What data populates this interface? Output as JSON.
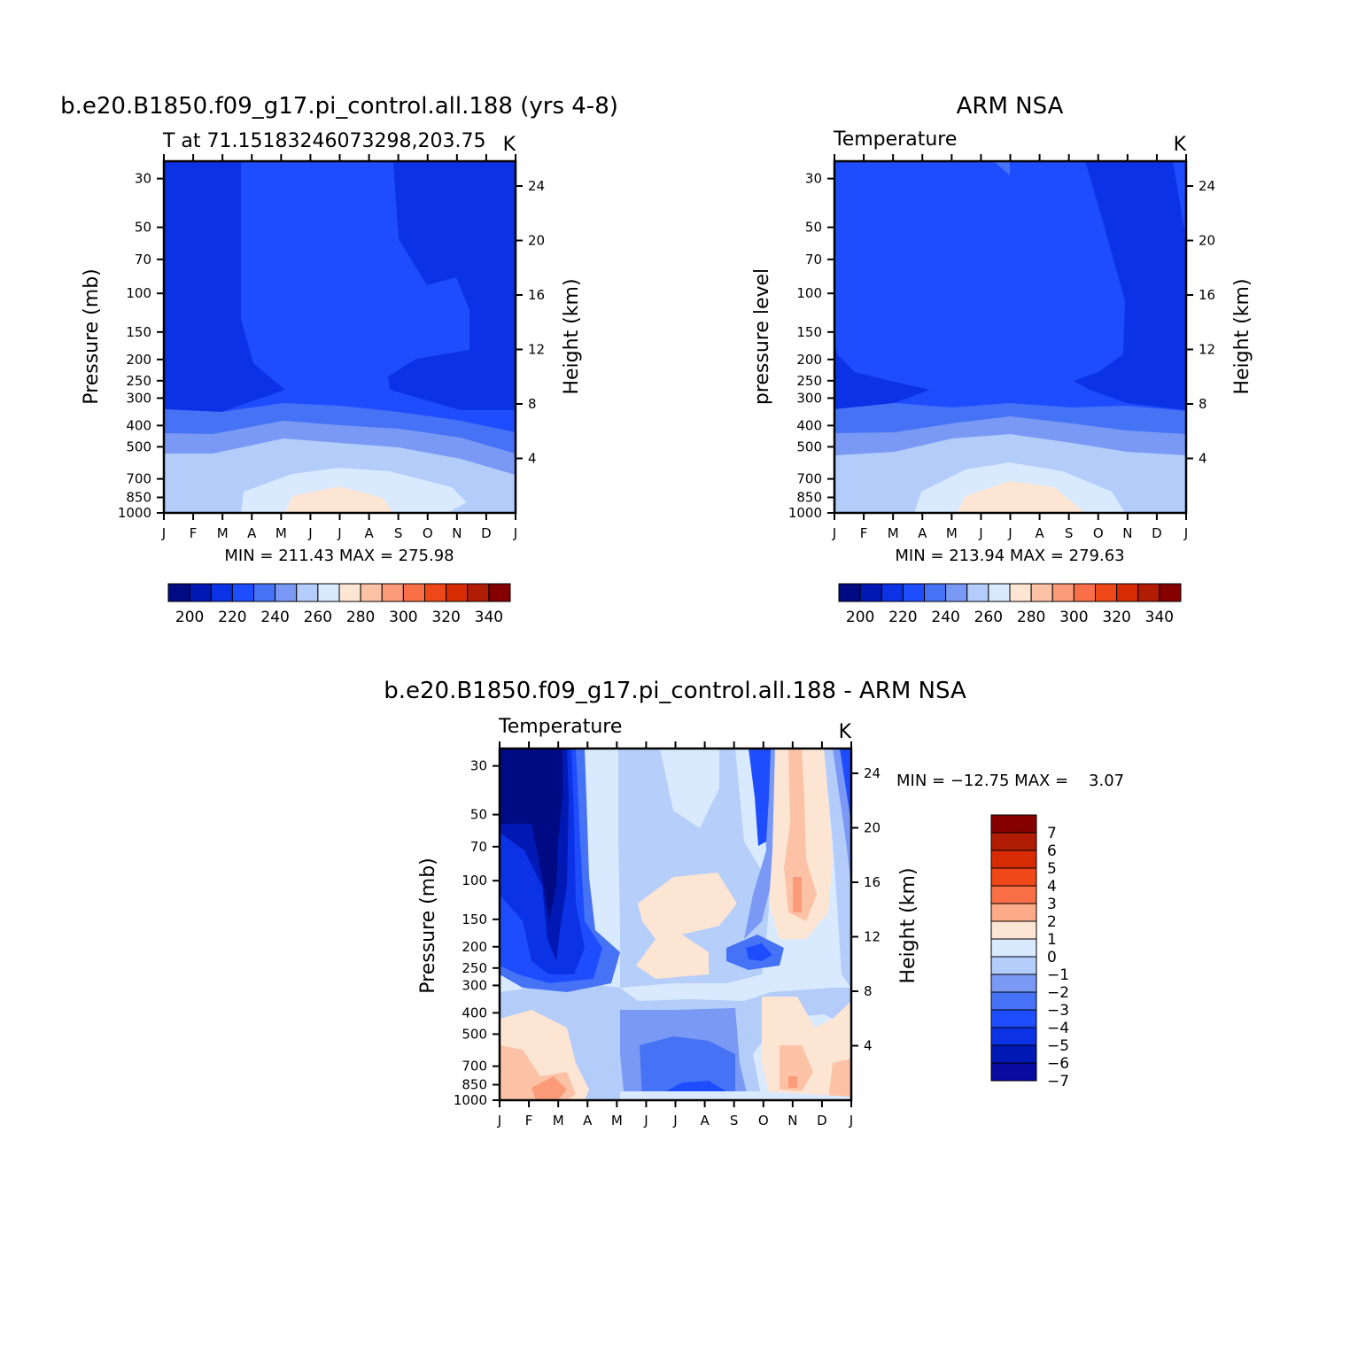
{
  "chart_data": [
    {
      "type": "heatmap",
      "title": "b.e20.B1850.f09_g17.pi_control.all.188 (yrs 4-8)",
      "subtitle_left": "T at 71.15183246073298,203.75",
      "subtitle_right": "K",
      "ylabel": "Pressure (mb)",
      "ylabel_right": "Height (km)",
      "x": [
        "J",
        "F",
        "M",
        "A",
        "M",
        "J",
        "J",
        "A",
        "S",
        "O",
        "N",
        "D",
        "J"
      ],
      "y_pressure_ticks": [
        "30",
        "50",
        "70",
        "100",
        "150",
        "200",
        "250",
        "300",
        "400",
        "500",
        "700",
        "850",
        "1000"
      ],
      "y_height_ticks": [
        "24",
        "20",
        "16",
        "12",
        "8",
        "4"
      ],
      "ylim": [
        1000,
        25
      ],
      "stats_text": "MIN = 211.43 MAX = 275.98",
      "min": 211.43,
      "max": 275.98,
      "colorbar": {
        "labels": [
          "200",
          "220",
          "240",
          "260",
          "280",
          "300",
          "320",
          "340"
        ],
        "levels": [
          190,
          200,
          210,
          220,
          230,
          240,
          250,
          260,
          270,
          280,
          290,
          300,
          310,
          320,
          330,
          340,
          350
        ]
      }
    },
    {
      "type": "heatmap",
      "title": "ARM NSA",
      "subtitle_left": "Temperature",
      "subtitle_right": "K",
      "ylabel": "pressure level",
      "ylabel_right": "Height (km)",
      "x": [
        "J",
        "F",
        "M",
        "A",
        "M",
        "J",
        "J",
        "A",
        "S",
        "O",
        "N",
        "D",
        "J"
      ],
      "y_pressure_ticks": [
        "30",
        "50",
        "70",
        "100",
        "150",
        "200",
        "250",
        "300",
        "400",
        "500",
        "700",
        "850",
        "1000"
      ],
      "y_height_ticks": [
        "24",
        "20",
        "16",
        "12",
        "8",
        "4"
      ],
      "ylim": [
        1000,
        25
      ],
      "stats_text": "MIN = 213.94 MAX = 279.63",
      "min": 213.94,
      "max": 279.63,
      "colorbar": {
        "labels": [
          "200",
          "220",
          "240",
          "260",
          "280",
          "300",
          "320",
          "340"
        ],
        "levels": [
          190,
          200,
          210,
          220,
          230,
          240,
          250,
          260,
          270,
          280,
          290,
          300,
          310,
          320,
          330,
          340,
          350
        ]
      }
    },
    {
      "type": "heatmap",
      "title": "b.e20.B1850.f09_g17.pi_control.all.188 - ARM NSA",
      "subtitle_left": "Temperature",
      "subtitle_right": "K",
      "ylabel": "Pressure (mb)",
      "ylabel_right": "Height (km)",
      "x": [
        "J",
        "F",
        "M",
        "A",
        "M",
        "J",
        "J",
        "A",
        "S",
        "O",
        "N",
        "D",
        "J"
      ],
      "y_pressure_ticks": [
        "30",
        "50",
        "70",
        "100",
        "150",
        "200",
        "250",
        "300",
        "400",
        "500",
        "700",
        "850",
        "1000"
      ],
      "y_height_ticks": [
        "24",
        "20",
        "16",
        "12",
        "8",
        "4"
      ],
      "ylim": [
        1000,
        25
      ],
      "stats_text": "MIN = −12.75 MAX =    3.07",
      "min": -12.75,
      "max": 3.07,
      "colorbar": {
        "labels": [
          "7",
          "6",
          "5",
          "4",
          "3",
          "2",
          "1",
          "0",
          "−1",
          "−2",
          "−3",
          "−4",
          "−5",
          "−6",
          "−7"
        ],
        "orientation": "vertical"
      }
    }
  ],
  "colors": {
    "abs_palette": [
      "#000a82",
      "#0019b4",
      "#0c32e6",
      "#1e4dff",
      "#4673f5",
      "#7999f4",
      "#b3ccfa",
      "#d9eaff",
      "#fde5d4",
      "#fcc2a6",
      "#fb9b79",
      "#f96f47",
      "#ee4718",
      "#d72b03",
      "#b11d04",
      "#860000"
    ],
    "diff_palette_top_to_bottom": [
      "#860000",
      "#b11d04",
      "#d72b03",
      "#ee4718",
      "#f96f47",
      "#fcaa88",
      "#fde5d4",
      "#d9eaff",
      "#b3ccfa",
      "#7999f4",
      "#4673f5",
      "#1e4dff",
      "#0c32e6",
      "#0019b4",
      "#0a0aa0"
    ]
  }
}
